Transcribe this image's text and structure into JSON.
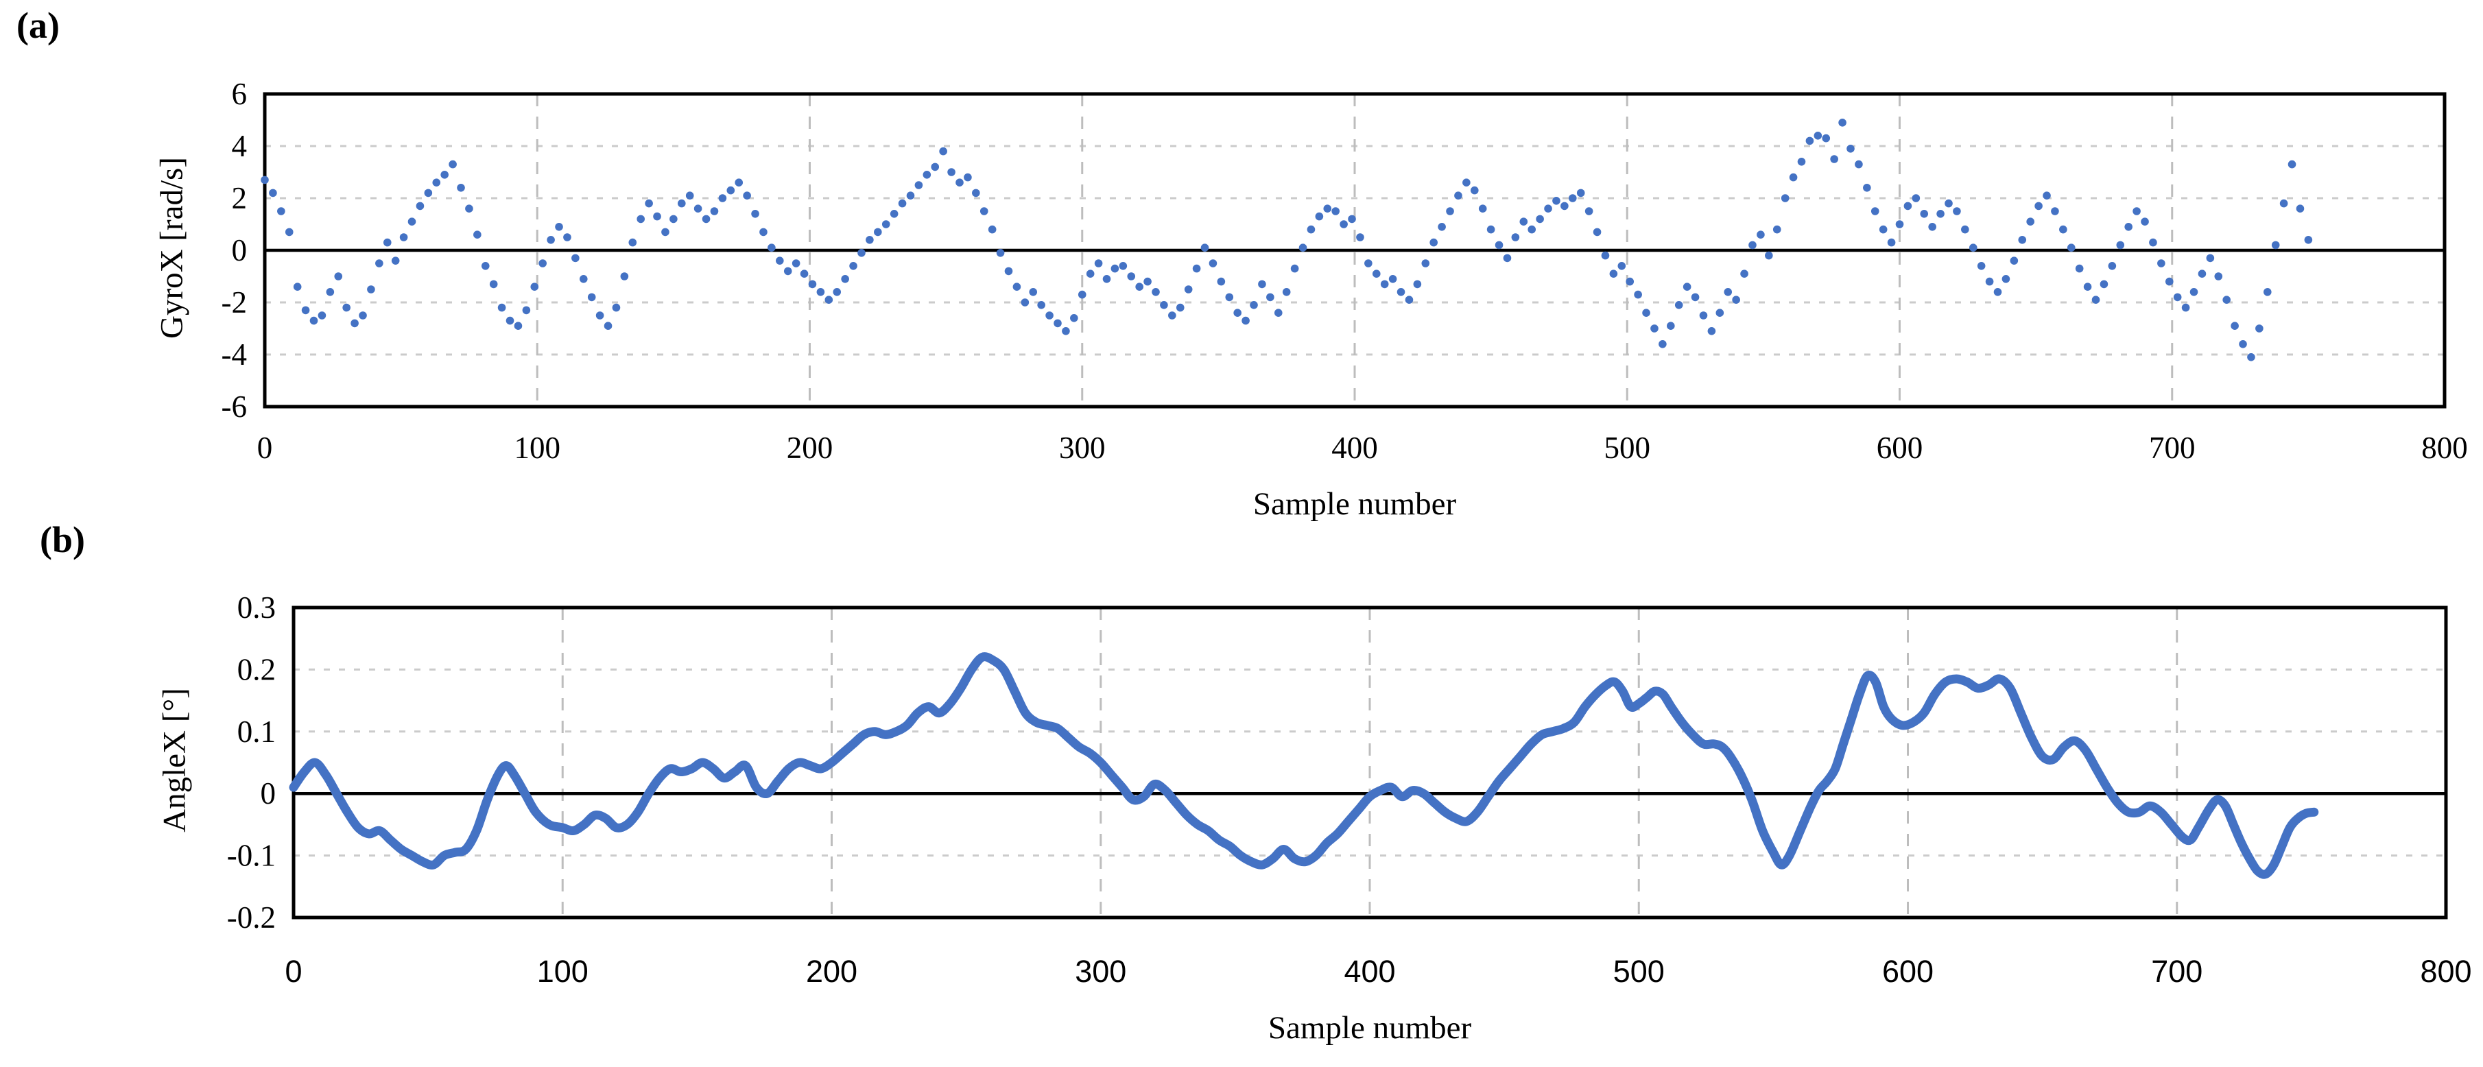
{
  "figure": {
    "panel_a_label": "(a)",
    "panel_b_label": "(b)"
  },
  "chart_data": [
    {
      "id": "gyrox",
      "panel": "(a)",
      "type": "scatter",
      "title": "",
      "xlabel": "Sample number",
      "ylabel": "GyroX [rad/s]",
      "xlim": [
        0,
        800
      ],
      "ylim": [
        -6,
        6
      ],
      "xticks": [
        "0",
        "100",
        "200",
        "300",
        "400",
        "500",
        "600",
        "700",
        "800"
      ],
      "yticks": [
        "6",
        "4",
        "2",
        "0",
        "-2",
        "-4",
        "-6"
      ],
      "grid": "dashed-on-ticks",
      "zero_line": true,
      "legend": "none",
      "marker_color": "#4472C4",
      "x_start": 0,
      "x_step": 3,
      "values": [
        2.7,
        2.2,
        1.5,
        0.7,
        -1.4,
        -2.3,
        -2.7,
        -2.5,
        -1.6,
        -1.0,
        -2.2,
        -2.8,
        -2.5,
        -1.5,
        -0.5,
        0.3,
        -0.4,
        0.5,
        1.1,
        1.7,
        2.2,
        2.6,
        2.9,
        3.3,
        2.4,
        1.6,
        0.6,
        -0.6,
        -1.3,
        -2.2,
        -2.7,
        -2.9,
        -2.3,
        -1.4,
        -0.5,
        0.4,
        0.9,
        0.5,
        -0.3,
        -1.1,
        -1.8,
        -2.5,
        -2.9,
        -2.2,
        -1.0,
        0.3,
        1.2,
        1.8,
        1.3,
        0.7,
        1.2,
        1.8,
        2.1,
        1.6,
        1.2,
        1.5,
        2.0,
        2.3,
        2.6,
        2.1,
        1.4,
        0.7,
        0.1,
        -0.4,
        -0.8,
        -0.5,
        -0.9,
        -1.3,
        -1.6,
        -1.9,
        -1.6,
        -1.1,
        -0.6,
        -0.1,
        0.4,
        0.7,
        1.0,
        1.4,
        1.8,
        2.1,
        2.5,
        2.9,
        3.2,
        3.8,
        3.0,
        2.6,
        2.8,
        2.2,
        1.5,
        0.8,
        -0.1,
        -0.8,
        -1.4,
        -2.0,
        -1.6,
        -2.1,
        -2.5,
        -2.8,
        -3.1,
        -2.6,
        -1.7,
        -0.9,
        -0.5,
        -1.1,
        -0.7,
        -0.6,
        -1.0,
        -1.4,
        -1.2,
        -1.6,
        -2.1,
        -2.5,
        -2.2,
        -1.5,
        -0.7,
        0.1,
        -0.5,
        -1.2,
        -1.8,
        -2.4,
        -2.7,
        -2.1,
        -1.3,
        -1.8,
        -2.4,
        -1.6,
        -0.7,
        0.1,
        0.8,
        1.3,
        1.6,
        1.5,
        1.0,
        1.2,
        0.5,
        -0.5,
        -0.9,
        -1.3,
        -1.1,
        -1.6,
        -1.9,
        -1.3,
        -0.5,
        0.3,
        0.9,
        1.5,
        2.1,
        2.6,
        2.3,
        1.6,
        0.8,
        0.2,
        -0.3,
        0.5,
        1.1,
        0.8,
        1.2,
        1.6,
        1.9,
        1.7,
        2.0,
        2.2,
        1.5,
        0.7,
        -0.2,
        -0.9,
        -0.6,
        -1.2,
        -1.7,
        -2.4,
        -3.0,
        -3.6,
        -2.9,
        -2.1,
        -1.4,
        -1.8,
        -2.5,
        -3.1,
        -2.4,
        -1.6,
        -1.9,
        -0.9,
        0.2,
        0.6,
        -0.2,
        0.8,
        2.0,
        2.8,
        3.4,
        4.2,
        4.4,
        4.3,
        3.5,
        4.9,
        3.9,
        3.3,
        2.4,
        1.5,
        0.8,
        0.3,
        1.0,
        1.7,
        2.0,
        1.4,
        0.9,
        1.4,
        1.8,
        1.5,
        0.8,
        0.1,
        -0.6,
        -1.2,
        -1.6,
        -1.1,
        -0.4,
        0.4,
        1.1,
        1.7,
        2.1,
        1.5,
        0.8,
        0.1,
        -0.7,
        -1.4,
        -1.9,
        -1.3,
        -0.6,
        0.2,
        0.9,
        1.5,
        1.1,
        0.3,
        -0.5,
        -1.2,
        -1.8,
        -2.2,
        -1.6,
        -0.9,
        -0.3,
        -1.0,
        -1.9,
        -2.9,
        -3.6,
        -4.1,
        -3.0,
        -1.6,
        0.2,
        1.8,
        3.3,
        1.6,
        0.4
      ]
    },
    {
      "id": "anglex",
      "panel": "(b)",
      "type": "line-scatter",
      "title": "",
      "xlabel": "Sample number",
      "ylabel": "AngleX [°]",
      "xlim": [
        0,
        800
      ],
      "ylim": [
        -0.2,
        0.3
      ],
      "xticks": [
        "0",
        "100",
        "200",
        "300",
        "400",
        "500",
        "600",
        "700",
        "800"
      ],
      "yticks": [
        "0.3",
        "0.2",
        "0.1",
        "0",
        "-0.1",
        "-0.2"
      ],
      "grid": "dashed-on-ticks",
      "zero_line": true,
      "legend": "none",
      "line_color": "#4472C4",
      "points": [
        [
          0,
          0.01
        ],
        [
          4,
          0.035
        ],
        [
          8,
          0.05
        ],
        [
          12,
          0.03
        ],
        [
          16,
          0.0
        ],
        [
          20,
          -0.03
        ],
        [
          24,
          -0.055
        ],
        [
          28,
          -0.065
        ],
        [
          32,
          -0.06
        ],
        [
          36,
          -0.075
        ],
        [
          40,
          -0.09
        ],
        [
          44,
          -0.1
        ],
        [
          48,
          -0.11
        ],
        [
          52,
          -0.115
        ],
        [
          56,
          -0.1
        ],
        [
          60,
          -0.095
        ],
        [
          64,
          -0.09
        ],
        [
          68,
          -0.06
        ],
        [
          72,
          -0.01
        ],
        [
          76,
          0.03
        ],
        [
          79,
          0.045
        ],
        [
          82,
          0.03
        ],
        [
          86,
          0.0
        ],
        [
          90,
          -0.03
        ],
        [
          95,
          -0.05
        ],
        [
          100,
          -0.055
        ],
        [
          104,
          -0.06
        ],
        [
          108,
          -0.05
        ],
        [
          112,
          -0.035
        ],
        [
          116,
          -0.04
        ],
        [
          120,
          -0.055
        ],
        [
          124,
          -0.05
        ],
        [
          128,
          -0.03
        ],
        [
          132,
          0.0
        ],
        [
          136,
          0.025
        ],
        [
          140,
          0.04
        ],
        [
          144,
          0.035
        ],
        [
          148,
          0.04
        ],
        [
          152,
          0.05
        ],
        [
          156,
          0.04
        ],
        [
          160,
          0.025
        ],
        [
          164,
          0.035
        ],
        [
          168,
          0.045
        ],
        [
          172,
          0.01
        ],
        [
          176,
          0.0
        ],
        [
          180,
          0.02
        ],
        [
          184,
          0.04
        ],
        [
          188,
          0.05
        ],
        [
          192,
          0.045
        ],
        [
          196,
          0.04
        ],
        [
          200,
          0.05
        ],
        [
          204,
          0.065
        ],
        [
          208,
          0.08
        ],
        [
          212,
          0.095
        ],
        [
          216,
          0.1
        ],
        [
          220,
          0.095
        ],
        [
          224,
          0.1
        ],
        [
          228,
          0.11
        ],
        [
          232,
          0.13
        ],
        [
          236,
          0.14
        ],
        [
          240,
          0.13
        ],
        [
          244,
          0.145
        ],
        [
          248,
          0.17
        ],
        [
          252,
          0.2
        ],
        [
          256,
          0.22
        ],
        [
          260,
          0.215
        ],
        [
          264,
          0.2
        ],
        [
          268,
          0.165
        ],
        [
          272,
          0.13
        ],
        [
          276,
          0.115
        ],
        [
          280,
          0.11
        ],
        [
          284,
          0.105
        ],
        [
          288,
          0.09
        ],
        [
          292,
          0.075
        ],
        [
          296,
          0.065
        ],
        [
          300,
          0.05
        ],
        [
          304,
          0.03
        ],
        [
          308,
          0.01
        ],
        [
          312,
          -0.01
        ],
        [
          316,
          -0.005
        ],
        [
          320,
          0.015
        ],
        [
          324,
          0.005
        ],
        [
          328,
          -0.015
        ],
        [
          332,
          -0.035
        ],
        [
          336,
          -0.05
        ],
        [
          340,
          -0.06
        ],
        [
          344,
          -0.075
        ],
        [
          348,
          -0.085
        ],
        [
          352,
          -0.1
        ],
        [
          356,
          -0.11
        ],
        [
          360,
          -0.115
        ],
        [
          364,
          -0.105
        ],
        [
          368,
          -0.09
        ],
        [
          372,
          -0.105
        ],
        [
          376,
          -0.11
        ],
        [
          380,
          -0.1
        ],
        [
          384,
          -0.08
        ],
        [
          388,
          -0.065
        ],
        [
          392,
          -0.045
        ],
        [
          396,
          -0.025
        ],
        [
          400,
          -0.005
        ],
        [
          404,
          0.005
        ],
        [
          408,
          0.01
        ],
        [
          412,
          -0.005
        ],
        [
          416,
          0.005
        ],
        [
          420,
          0.0
        ],
        [
          424,
          -0.015
        ],
        [
          428,
          -0.03
        ],
        [
          432,
          -0.04
        ],
        [
          436,
          -0.045
        ],
        [
          440,
          -0.03
        ],
        [
          444,
          -0.005
        ],
        [
          448,
          0.02
        ],
        [
          452,
          0.04
        ],
        [
          456,
          0.06
        ],
        [
          460,
          0.08
        ],
        [
          464,
          0.095
        ],
        [
          468,
          0.1
        ],
        [
          472,
          0.105
        ],
        [
          476,
          0.115
        ],
        [
          480,
          0.14
        ],
        [
          484,
          0.16
        ],
        [
          488,
          0.175
        ],
        [
          491,
          0.18
        ],
        [
          494,
          0.165
        ],
        [
          497,
          0.14
        ],
        [
          500,
          0.145
        ],
        [
          503,
          0.155
        ],
        [
          506,
          0.165
        ],
        [
          509,
          0.16
        ],
        [
          512,
          0.14
        ],
        [
          516,
          0.115
        ],
        [
          520,
          0.095
        ],
        [
          524,
          0.08
        ],
        [
          528,
          0.08
        ],
        [
          531,
          0.075
        ],
        [
          534,
          0.06
        ],
        [
          538,
          0.03
        ],
        [
          542,
          -0.01
        ],
        [
          546,
          -0.06
        ],
        [
          550,
          -0.095
        ],
        [
          553,
          -0.115
        ],
        [
          556,
          -0.1
        ],
        [
          560,
          -0.06
        ],
        [
          564,
          -0.02
        ],
        [
          567,
          0.005
        ],
        [
          570,
          0.02
        ],
        [
          573,
          0.04
        ],
        [
          576,
          0.08
        ],
        [
          579,
          0.12
        ],
        [
          582,
          0.16
        ],
        [
          585,
          0.19
        ],
        [
          588,
          0.18
        ],
        [
          591,
          0.14
        ],
        [
          594,
          0.12
        ],
        [
          598,
          0.11
        ],
        [
          602,
          0.115
        ],
        [
          606,
          0.13
        ],
        [
          610,
          0.16
        ],
        [
          614,
          0.18
        ],
        [
          618,
          0.185
        ],
        [
          622,
          0.18
        ],
        [
          626,
          0.17
        ],
        [
          630,
          0.175
        ],
        [
          634,
          0.185
        ],
        [
          638,
          0.17
        ],
        [
          642,
          0.13
        ],
        [
          646,
          0.09
        ],
        [
          650,
          0.06
        ],
        [
          654,
          0.055
        ],
        [
          658,
          0.075
        ],
        [
          662,
          0.085
        ],
        [
          666,
          0.07
        ],
        [
          670,
          0.04
        ],
        [
          674,
          0.01
        ],
        [
          678,
          -0.015
        ],
        [
          682,
          -0.03
        ],
        [
          686,
          -0.03
        ],
        [
          690,
          -0.02
        ],
        [
          694,
          -0.03
        ],
        [
          698,
          -0.05
        ],
        [
          702,
          -0.07
        ],
        [
          705,
          -0.075
        ],
        [
          708,
          -0.055
        ],
        [
          712,
          -0.025
        ],
        [
          715,
          -0.01
        ],
        [
          718,
          -0.02
        ],
        [
          721,
          -0.05
        ],
        [
          724,
          -0.08
        ],
        [
          727,
          -0.105
        ],
        [
          730,
          -0.125
        ],
        [
          733,
          -0.13
        ],
        [
          736,
          -0.115
        ],
        [
          739,
          -0.085
        ],
        [
          742,
          -0.055
        ],
        [
          745,
          -0.04
        ],
        [
          748,
          -0.032
        ],
        [
          751,
          -0.03
        ]
      ]
    }
  ]
}
